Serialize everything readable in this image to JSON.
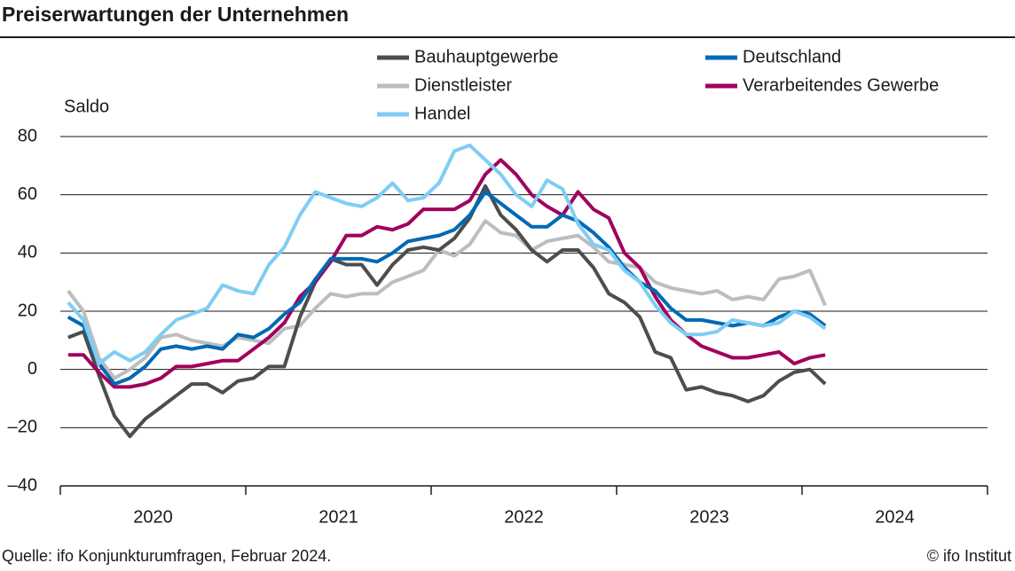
{
  "chart_data": {
    "type": "line",
    "title": "Preiserwartungen der Unternehmen",
    "ylabel": "Saldo",
    "source": "Quelle: ifo Konjunkturumfragen, Februar 2024.",
    "credit": "© ifo Institut",
    "x": [
      2020.042,
      2020.125,
      2020.208,
      2020.292,
      2020.375,
      2020.458,
      2020.542,
      2020.625,
      2020.708,
      2020.792,
      2020.875,
      2020.958,
      2021.042,
      2021.125,
      2021.208,
      2021.292,
      2021.375,
      2021.458,
      2021.542,
      2021.625,
      2021.708,
      2021.792,
      2021.875,
      2021.958,
      2022.042,
      2022.125,
      2022.208,
      2022.292,
      2022.375,
      2022.458,
      2022.542,
      2022.625,
      2022.708,
      2022.792,
      2022.875,
      2022.958,
      2023.042,
      2023.125,
      2023.208,
      2023.292,
      2023.375,
      2023.458,
      2023.542,
      2023.625,
      2023.708,
      2023.792,
      2023.875,
      2023.958,
      2024.042,
      2024.125
    ],
    "xlim": [
      2020,
      2025
    ],
    "xticks": [
      2020,
      2021,
      2022,
      2023,
      2024,
      2025
    ],
    "ylim": [
      -40,
      80
    ],
    "yticks": [
      {
        "value": -40,
        "label": "–40"
      },
      {
        "value": -20,
        "label": "–20"
      },
      0,
      20,
      40,
      60,
      80
    ],
    "grid": true,
    "legend": "top",
    "series": [
      {
        "name": "Bauhauptgewerbe",
        "color": "#4d4d4d",
        "values": [
          11,
          13,
          -2,
          -16,
          -23,
          -17,
          -13,
          -9,
          -5,
          -5,
          -8,
          -4,
          -3,
          1,
          1,
          18,
          30,
          38,
          36,
          36,
          29,
          36,
          41,
          42,
          41,
          45,
          52,
          63,
          53,
          48,
          41,
          37,
          41,
          41,
          35,
          26,
          23,
          18,
          6,
          4,
          -7,
          -6,
          -8,
          -9,
          -11,
          -9,
          -4,
          -1,
          0,
          -5
        ]
      },
      {
        "name": "Deutschland",
        "color": "#0069b4",
        "values": [
          18,
          15,
          2,
          -5,
          -3,
          1,
          7,
          8,
          7,
          8,
          7,
          12,
          11,
          14,
          19,
          23,
          31,
          38,
          38,
          38,
          37,
          40,
          44,
          45,
          46,
          48,
          53,
          61,
          57,
          53,
          49,
          49,
          53,
          51,
          47,
          42,
          35,
          30,
          27,
          21,
          17,
          17,
          16,
          15,
          16,
          15,
          18,
          20,
          19,
          15
        ]
      },
      {
        "name": "Dienstleister",
        "color": "#bdbdbd",
        "values": [
          27,
          20,
          4,
          -3,
          0,
          4,
          11,
          12,
          10,
          9,
          8,
          11,
          10,
          9,
          14,
          15,
          21,
          26,
          25,
          26,
          26,
          30,
          32,
          34,
          41,
          39,
          43,
          51,
          47,
          46,
          41,
          44,
          45,
          46,
          42,
          37,
          36,
          35,
          30,
          28,
          27,
          26,
          27,
          24,
          25,
          24,
          31,
          32,
          34,
          22
        ]
      },
      {
        "name": "Verarbeitendes Gewerbe",
        "color": "#a1005e",
        "values": [
          5,
          5,
          -1,
          -6,
          -6,
          -5,
          -3,
          1,
          1,
          2,
          3,
          3,
          7,
          11,
          16,
          25,
          30,
          37,
          46,
          46,
          49,
          48,
          50,
          55,
          55,
          55,
          58,
          67,
          72,
          67,
          60,
          56,
          53,
          61,
          55,
          52,
          40,
          35,
          25,
          17,
          12,
          8,
          6,
          4,
          4,
          5,
          6,
          2,
          4,
          5
        ]
      },
      {
        "name": "Handel",
        "color": "#7fcdf3",
        "values": [
          23,
          17,
          2,
          6,
          3,
          6,
          12,
          17,
          19,
          21,
          29,
          27,
          26,
          36,
          42,
          53,
          61,
          59,
          57,
          56,
          59,
          64,
          58,
          59,
          64,
          75,
          77,
          72,
          67,
          60,
          56,
          65,
          62,
          50,
          43,
          41,
          34,
          30,
          22,
          16,
          12,
          12,
          13,
          17,
          16,
          15,
          16,
          20,
          18,
          14
        ]
      }
    ]
  }
}
